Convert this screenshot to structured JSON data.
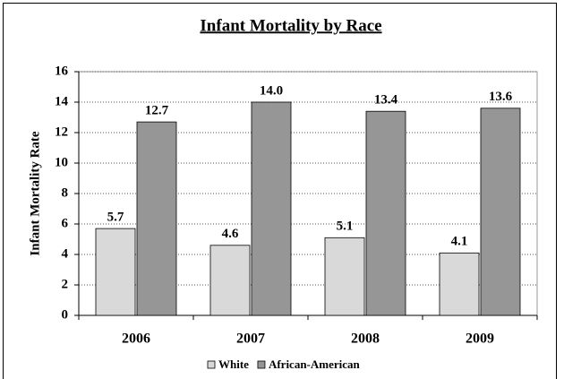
{
  "chart_data": {
    "type": "bar",
    "title": "Infant Mortality by Race",
    "y_label": "Infant Mortality Rate",
    "categories": [
      "2006",
      "2007",
      "2008",
      "2009"
    ],
    "series": [
      {
        "name": "White",
        "color": "#d9d9d9",
        "values": [
          5.7,
          4.6,
          5.1,
          4.1
        ],
        "value_labels": [
          "5.7",
          "4.6",
          "5.1",
          "4.1"
        ]
      },
      {
        "name": "African-American",
        "color": "#969696",
        "values": [
          12.7,
          14,
          13.4,
          13.6
        ],
        "value_labels": [
          "12.7",
          "14.0",
          "13.4",
          "13.6"
        ]
      }
    ],
    "ylim": [
      0,
      16
    ],
    "yticks": [
      0,
      2,
      4,
      6,
      8,
      10,
      12,
      14,
      16
    ],
    "grid": true,
    "legend": "bottom"
  }
}
